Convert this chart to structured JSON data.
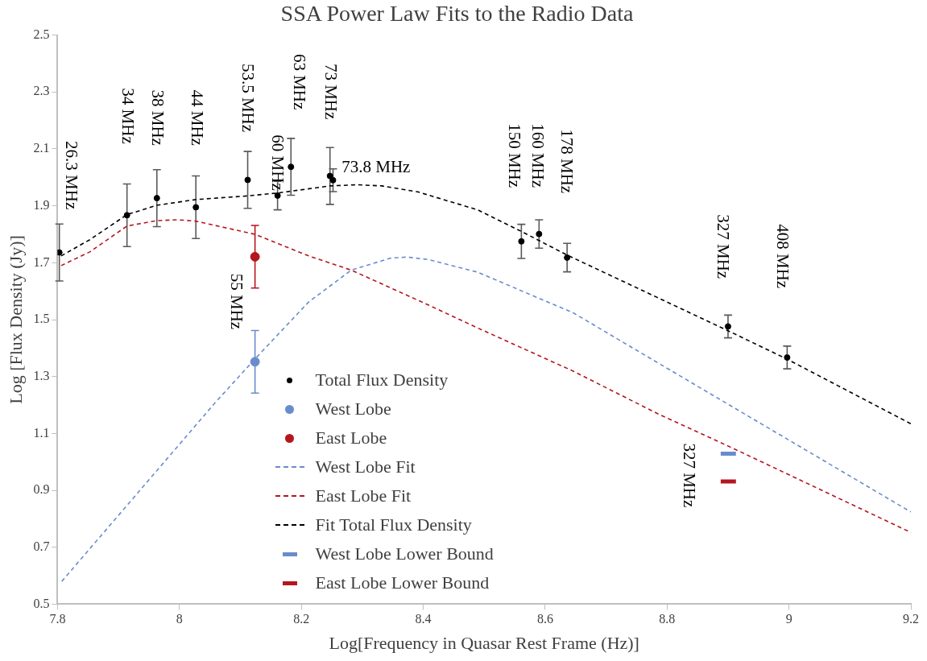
{
  "chart_data": {
    "type": "scatter",
    "title": "SSA Power Law Fits to the Radio Data",
    "xlabel": "Log[Frequency in Quasar Rest Frame (Hz)]",
    "ylabel": "Log [Flux Density (Jy)]",
    "xlim": [
      7.8,
      9.2
    ],
    "xticks": [
      7.8,
      8,
      8.2,
      8.4,
      8.6,
      8.8,
      9,
      9.2
    ],
    "ylim": [
      0.5,
      2.5
    ],
    "yticks": [
      0.5,
      0.7,
      0.9,
      1.1,
      1.3,
      1.5,
      1.7,
      1.9,
      2.1,
      2.3,
      2.5
    ],
    "grid": false,
    "legend": "bottom",
    "series": [
      {
        "name": "Total Flux Density",
        "marker": "circle",
        "color": "#000000",
        "x": [
          7.803,
          7.914,
          7.963,
          8.027,
          8.112,
          8.161,
          8.183,
          8.247,
          8.252,
          8.561,
          8.59,
          8.636,
          8.9,
          8.997
        ],
        "values": [
          1.736,
          1.867,
          1.927,
          1.895,
          1.991,
          1.936,
          2.037,
          2.005,
          1.99,
          1.775,
          1.801,
          1.718,
          1.476,
          1.367
        ],
        "errors": [
          0.1,
          0.11,
          0.1,
          0.11,
          0.1,
          0.05,
          0.1,
          0.1,
          0.04,
          0.06,
          0.05,
          0.05,
          0.04,
          0.04
        ]
      },
      {
        "name": "West Lobe",
        "marker": "circle",
        "color": "#6a8ccc",
        "x": [
          8.124
        ],
        "values": [
          1.352
        ],
        "errors": [
          0.11
        ]
      },
      {
        "name": "East Lobe",
        "marker": "circle",
        "color": "#b5161e",
        "x": [
          8.124
        ],
        "values": [
          1.721
        ],
        "errors": [
          0.11
        ]
      },
      {
        "name": "West Lobe Fit",
        "type": "line",
        "marker": "none",
        "line_style": "dashed",
        "color": "#6a8ccc",
        "x": [
          7.807,
          8.059,
          8.124,
          8.212,
          8.282,
          8.346,
          8.373,
          8.409,
          8.489,
          8.646,
          8.812,
          8.857,
          9.2
        ],
        "values": [
          0.58,
          1.209,
          1.362,
          1.562,
          1.674,
          1.716,
          1.72,
          1.711,
          1.667,
          1.524,
          1.314,
          1.257,
          0.824
        ]
      },
      {
        "name": "East Lobe Fit",
        "type": "line",
        "marker": "none",
        "line_style": "dashed",
        "color": "#b5161e",
        "x": [
          7.806,
          7.853,
          7.914,
          7.963,
          7.997,
          8.027,
          8.124,
          8.212,
          8.282,
          8.409,
          8.489,
          8.646,
          8.785,
          8.91,
          9.2
        ],
        "values": [
          1.69,
          1.738,
          1.829,
          1.848,
          1.851,
          1.846,
          1.8,
          1.724,
          1.674,
          1.551,
          1.471,
          1.319,
          1.169,
          1.046,
          0.752
        ]
      },
      {
        "name": "Fit Total Flux Density",
        "type": "line",
        "marker": "none",
        "line_style": "dashed",
        "color": "#000000",
        "x": [
          7.806,
          7.853,
          7.914,
          7.963,
          8.027,
          8.112,
          8.161,
          8.247,
          8.292,
          8.332,
          8.391,
          8.489,
          8.561,
          8.636,
          8.9,
          8.997,
          9.2
        ],
        "values": [
          1.724,
          1.781,
          1.869,
          1.902,
          1.922,
          1.935,
          1.945,
          1.97,
          1.974,
          1.97,
          1.949,
          1.886,
          1.81,
          1.727,
          1.461,
          1.361,
          1.134
        ]
      },
      {
        "name": "West Lobe Lower Bound",
        "type": "line",
        "marker": "none",
        "line_style": "solid",
        "color": "#6a8ccc",
        "x": [
          8.888,
          8.913
        ],
        "values": [
          1.029,
          1.029
        ]
      },
      {
        "name": "East Lobe Lower Bound",
        "type": "line",
        "marker": "none",
        "line_style": "solid",
        "color": "#b5161e",
        "x": [
          8.888,
          8.913
        ],
        "values": [
          0.931,
          0.931
        ]
      }
    ],
    "annotations": [
      "26.3 MHz",
      "34 MHz",
      "38 MHz",
      "44 MHz",
      "53.5 MHz",
      "60 MHz",
      "63 MHz",
      "73 MHz",
      "73.8 MHz",
      "150 MHz",
      "160 MHz",
      "178 MHz",
      "327 MHz",
      "408 MHz",
      "55 MHz",
      "327 MHz"
    ]
  }
}
